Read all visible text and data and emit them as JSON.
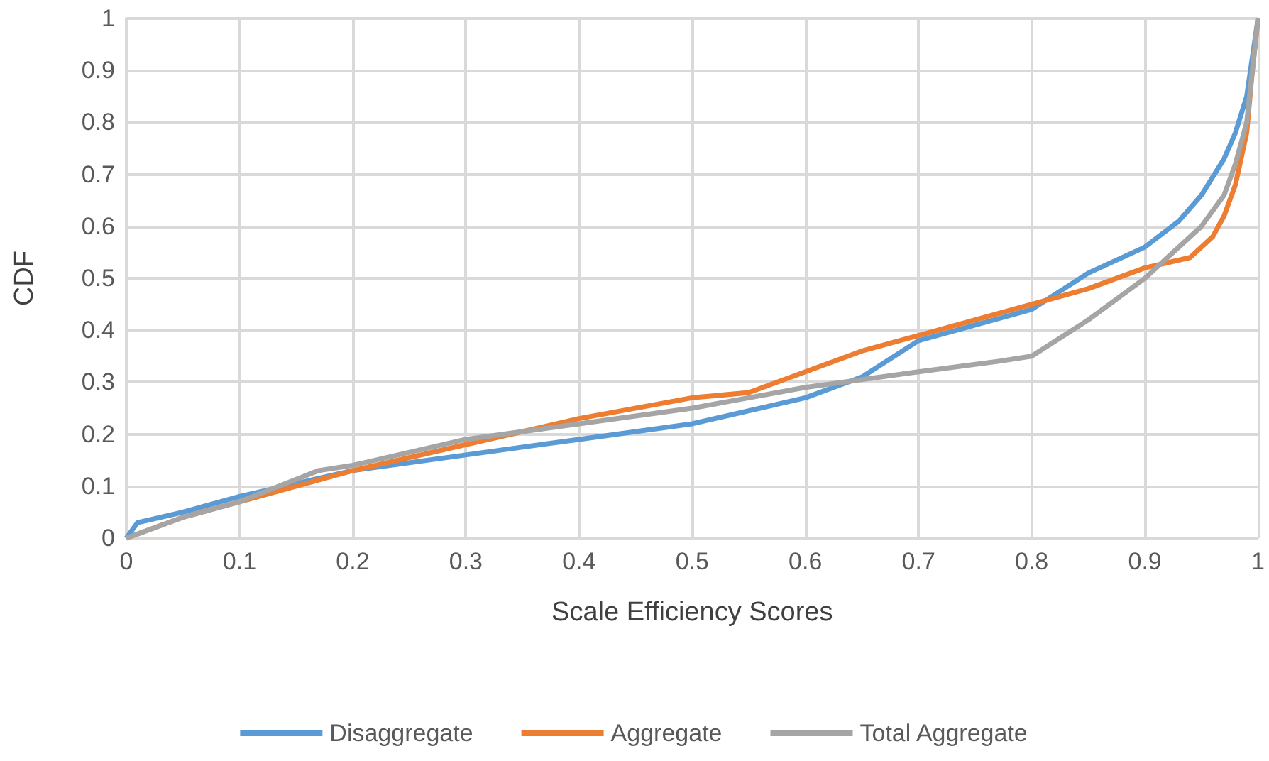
{
  "chart_data": {
    "type": "line",
    "xlabel": "Scale Efficiency Scores",
    "ylabel": "CDF",
    "xlim": [
      0,
      1
    ],
    "xticks": [
      0,
      0.1,
      0.2,
      0.3,
      0.4,
      0.5,
      0.6,
      0.7,
      0.8,
      0.9,
      1
    ],
    "ylim": [
      0,
      1
    ],
    "yticks": [
      0,
      0.1,
      0.2,
      0.3,
      0.4,
      0.5,
      0.6,
      0.7,
      0.8,
      0.9,
      1
    ],
    "grid": true,
    "legend": "bottom",
    "marker": "none",
    "line_style": "solid",
    "series": [
      {
        "name": "Disaggregate",
        "color": "#5b9bd5",
        "x": [
          0,
          0.01,
          0.05,
          0.1,
          0.2,
          0.3,
          0.4,
          0.5,
          0.6,
          0.65,
          0.7,
          0.75,
          0.8,
          0.85,
          0.9,
          0.93,
          0.95,
          0.97,
          0.98,
          0.99,
          1
        ],
        "values": [
          0,
          0.03,
          0.05,
          0.08,
          0.13,
          0.16,
          0.19,
          0.22,
          0.27,
          0.31,
          0.38,
          0.41,
          0.44,
          0.51,
          0.56,
          0.61,
          0.66,
          0.73,
          0.78,
          0.85,
          1
        ]
      },
      {
        "name": "Aggregate",
        "color": "#ed7d31",
        "x": [
          0,
          0.05,
          0.1,
          0.2,
          0.3,
          0.4,
          0.5,
          0.55,
          0.6,
          0.65,
          0.7,
          0.75,
          0.8,
          0.85,
          0.9,
          0.94,
          0.96,
          0.97,
          0.98,
          0.99,
          0.995,
          1
        ],
        "values": [
          0,
          0.04,
          0.07,
          0.13,
          0.18,
          0.23,
          0.27,
          0.28,
          0.32,
          0.36,
          0.39,
          0.42,
          0.45,
          0.48,
          0.52,
          0.54,
          0.58,
          0.62,
          0.68,
          0.78,
          0.9,
          1
        ]
      },
      {
        "name": "Total Aggregate",
        "color": "#a5a5a5",
        "x": [
          0,
          0.05,
          0.1,
          0.17,
          0.2,
          0.3,
          0.4,
          0.5,
          0.6,
          0.7,
          0.77,
          0.8,
          0.85,
          0.9,
          0.93,
          0.95,
          0.97,
          0.98,
          0.99,
          1
        ],
        "values": [
          0,
          0.04,
          0.07,
          0.13,
          0.14,
          0.19,
          0.22,
          0.25,
          0.29,
          0.32,
          0.34,
          0.35,
          0.42,
          0.5,
          0.56,
          0.6,
          0.66,
          0.72,
          0.8,
          1
        ]
      }
    ]
  }
}
